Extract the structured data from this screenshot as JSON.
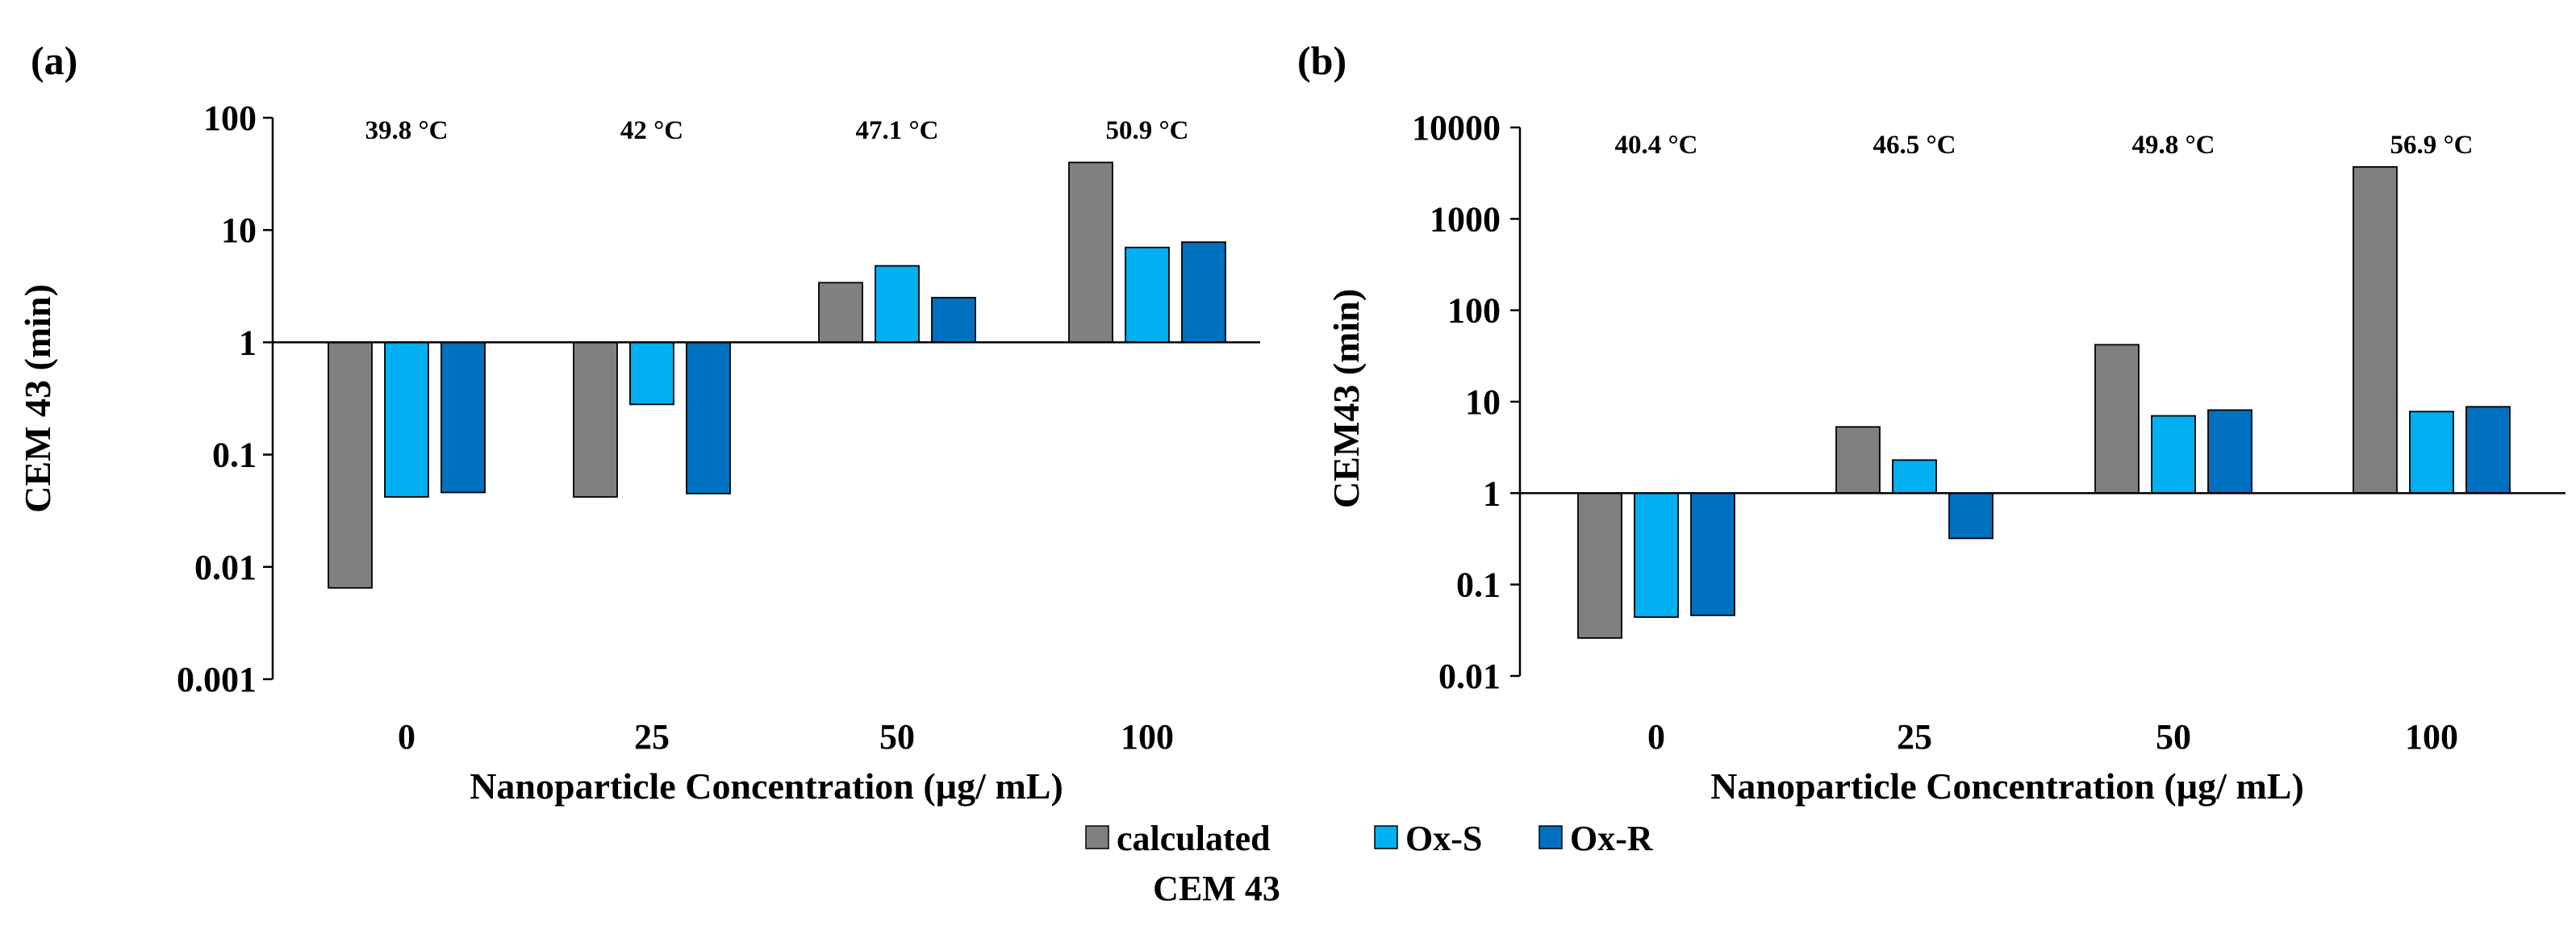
{
  "figure": {
    "legend": {
      "items": [
        {
          "label_lines": [
            "calculated",
            "CEM 43"
          ],
          "color": "#808080"
        },
        {
          "label_lines": [
            "Ox-S"
          ],
          "color": "#00B0F0"
        },
        {
          "label_lines": [
            "Ox-R"
          ],
          "color": "#0070C0"
        }
      ]
    }
  },
  "chart_data": [
    {
      "panel_label": "(a)",
      "type": "bar",
      "xlabel": "Nanoparticle Concentration (µg/ mL)",
      "ylabel": "CEM 43 (min)",
      "yscale": "log",
      "ylim": [
        0.001,
        100
      ],
      "baseline": 1,
      "yticks": [
        "0.001",
        "0.01",
        "0.1",
        "1",
        "10",
        "100"
      ],
      "categories": [
        "0",
        "25",
        "50",
        "100"
      ],
      "temperatures": [
        "39.8 °C",
        "42 °C",
        "47.1 °C",
        "50.9 °C"
      ],
      "series": [
        {
          "name": "calculated CEM 43",
          "color": "#808080",
          "values": [
            0.0065,
            0.042,
            3.4,
            40
          ]
        },
        {
          "name": "Ox-S",
          "color": "#00B0F0",
          "values": [
            0.042,
            0.28,
            4.8,
            7.0
          ]
        },
        {
          "name": "Ox-R",
          "color": "#0070C0",
          "values": [
            0.046,
            0.045,
            2.5,
            7.8
          ]
        }
      ],
      "legend": "bottom-center",
      "grid": false
    },
    {
      "panel_label": "(b)",
      "type": "bar",
      "xlabel": "Nanoparticle Concentration (µg/ mL)",
      "ylabel": "CEM43 (min)",
      "yscale": "log",
      "ylim": [
        0.01,
        10000
      ],
      "baseline": 1,
      "yticks": [
        "0.01",
        "0.1",
        "1",
        "10",
        "100",
        "1000",
        "10000"
      ],
      "categories": [
        "0",
        "25",
        "50",
        "100"
      ],
      "temperatures": [
        "40.4 °C",
        "46.5 °C",
        "49.8 °C",
        "56.9 °C"
      ],
      "series": [
        {
          "name": "calculated CEM 43",
          "color": "#808080",
          "values": [
            0.026,
            5.3,
            42,
            3700
          ]
        },
        {
          "name": "Ox-S",
          "color": "#00B0F0",
          "values": [
            0.044,
            2.3,
            7.0,
            7.8
          ]
        },
        {
          "name": "Ox-R",
          "color": "#0070C0",
          "values": [
            0.046,
            0.32,
            8.1,
            8.8
          ]
        }
      ],
      "legend": "bottom-center",
      "grid": false
    }
  ]
}
